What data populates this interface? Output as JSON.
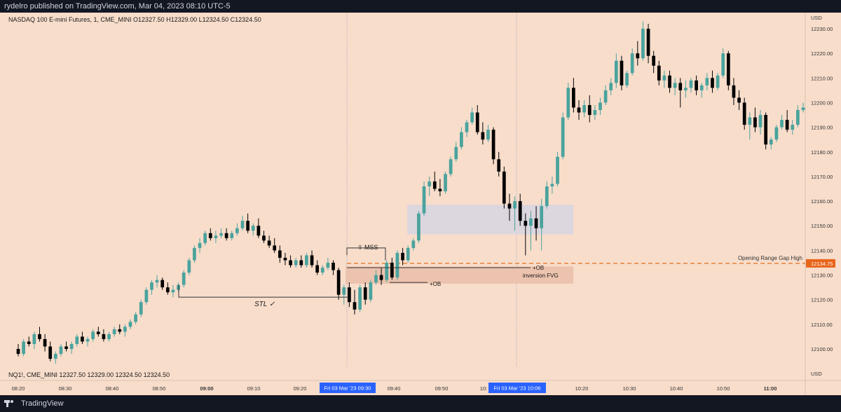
{
  "publish_line": "rydelro published on TradingView.com, Mar 04, 2023 08:10 UTC-5",
  "footer": {
    "brand": "TradingView"
  },
  "legend": {
    "top": "NASDAQ 100 E-mini Futures, 1, CME_MINI  O12327.50  H12329.00  L12324.50  C12324.50",
    "bottom": "NQ1!, CME_MINI  12327.50  12329.00  12324.50  12324.50"
  },
  "price_axis": {
    "currency": "USD",
    "currency_bottom": "USD",
    "ticks": [
      "12230.00",
      "12220.00",
      "12210.00",
      "12200.00",
      "12190.00",
      "12180.00",
      "12170.00",
      "12160.00",
      "12150.00",
      "12140.00",
      "12130.00",
      "12120.00",
      "12110.00",
      "12100.00"
    ],
    "current_price_label": "12134.75"
  },
  "time_axis": {
    "ticks": [
      "08:20",
      "08:30",
      "08:40",
      "08:50",
      "09:00",
      "09:10",
      "09:20",
      "09:40",
      "09:50",
      "10:",
      "10:20",
      "10:30",
      "10:40",
      "10:50",
      "11:00"
    ],
    "highlight_1": "Fri 03 Mar '23   09:30",
    "highlight_2": "Fri 03 Mar '23   10:06"
  },
  "annotations": {
    "mss": "⇧ MSS",
    "stl": "STL ✓",
    "ob_low": "+OB",
    "ob_high": "+OB",
    "inversion_fvg": "inversion FVG",
    "opening_range": "Opening Range Gap High"
  },
  "colors": {
    "background": "#f8ddcb",
    "bull": "#4aa39d",
    "bear": "#000000",
    "level_line": "#e36f1a",
    "price_label_bg": "#e8651c",
    "highlight_label_bg": "#2962ff"
  },
  "chart_data": {
    "type": "candlestick",
    "unit": "USD",
    "levels": {
      "opening_range_gap_high": 12134.75
    },
    "zones": [
      {
        "label": "",
        "from_time": "09:42",
        "to_time": "10:17",
        "low": 12146.5,
        "high": 12158.5
      },
      {
        "label": "inversion FVG",
        "from_time": "09:29",
        "to_time": "10:17",
        "low": 12126.5,
        "high": 12133.5
      }
    ],
    "candles": [
      [
        12100,
        12102,
        12097,
        12098
      ],
      [
        12098,
        12104,
        12097,
        12103
      ],
      [
        12103,
        12105,
        12101,
        12102
      ],
      [
        12102,
        12107,
        12100,
        12106
      ],
      [
        12106,
        12109,
        12103,
        12104
      ],
      [
        12104,
        12106,
        12099,
        12101
      ],
      [
        12101,
        12103,
        12095,
        12096
      ],
      [
        12096,
        12099,
        12094,
        12098
      ],
      [
        12098,
        12102,
        12097,
        12101
      ],
      [
        12101,
        12103,
        12099,
        12100
      ],
      [
        12100,
        12103,
        12098,
        12102
      ],
      [
        12102,
        12106,
        12101,
        12105
      ],
      [
        12105,
        12107,
        12102,
        12103
      ],
      [
        12103,
        12105,
        12101,
        12104
      ],
      [
        12104,
        12108,
        12103,
        12107
      ],
      [
        12107,
        12109,
        12105,
        12106
      ],
      [
        12106,
        12108,
        12103,
        12104
      ],
      [
        12104,
        12107,
        12103,
        12106
      ],
      [
        12106,
        12109,
        12105,
        12108
      ],
      [
        12108,
        12110,
        12106,
        12107
      ],
      [
        12107,
        12110,
        12105,
        12109
      ],
      [
        12109,
        12112,
        12108,
        12111
      ],
      [
        12111,
        12115,
        12110,
        12114
      ],
      [
        12114,
        12120,
        12113,
        12119
      ],
      [
        12119,
        12125,
        12118,
        12124
      ],
      [
        12124,
        12128,
        12122,
        12127
      ],
      [
        12127,
        12130,
        12125,
        12128
      ],
      [
        12128,
        12129,
        12124,
        12125
      ],
      [
        12125,
        12127,
        12122,
        12123
      ],
      [
        12123,
        12126,
        12121,
        12124
      ],
      [
        12124,
        12127,
        12123,
        12126
      ],
      [
        12126,
        12132,
        12125,
        12131
      ],
      [
        12131,
        12137,
        12130,
        12136
      ],
      [
        12136,
        12142,
        12135,
        12141
      ],
      [
        12141,
        12145,
        12139,
        12143
      ],
      [
        12143,
        12148,
        12142,
        12147
      ],
      [
        12147,
        12149,
        12144,
        12145
      ],
      [
        12145,
        12148,
        12143,
        12146
      ],
      [
        12146,
        12149,
        12145,
        12147
      ],
      [
        12147,
        12149,
        12144,
        12145
      ],
      [
        12145,
        12148,
        12144,
        12147
      ],
      [
        12147,
        12151,
        12146,
        12149
      ],
      [
        12149,
        12154,
        12148,
        12152
      ],
      [
        12152,
        12155,
        12147,
        12148
      ],
      [
        12148,
        12151,
        12146,
        12150
      ],
      [
        12150,
        12153,
        12145,
        12146
      ],
      [
        12146,
        12148,
        12143,
        12144
      ],
      [
        12144,
        12146,
        12141,
        12142
      ],
      [
        12142,
        12145,
        12139,
        12140
      ],
      [
        12140,
        12142,
        12135,
        12137
      ],
      [
        12137,
        12139,
        12134,
        12136
      ],
      [
        12136,
        12138,
        12133,
        12134
      ],
      [
        12134,
        12137,
        12133,
        12136
      ],
      [
        12136,
        12138,
        12133,
        12134
      ],
      [
        12134,
        12139,
        12133,
        12138
      ],
      [
        12138,
        12140,
        12133,
        12134
      ],
      [
        12134,
        12136,
        12130,
        12131
      ],
      [
        12131,
        12134,
        12130,
        12133
      ],
      [
        12133,
        12137,
        12132,
        12135
      ],
      [
        12135,
        12136,
        12130,
        12132
      ],
      [
        12132,
        12133,
        12120,
        12122
      ],
      [
        12122,
        12126,
        12118,
        12125
      ],
      [
        12125,
        12127,
        12117,
        12119
      ],
      [
        12119,
        12124,
        12114,
        12116
      ],
      [
        12116,
        12126,
        12115,
        12125
      ],
      [
        12125,
        12127,
        12118,
        12120
      ],
      [
        12120,
        12128,
        12119,
        12127
      ],
      [
        12127,
        12132,
        12126,
        12130
      ],
      [
        12130,
        12133,
        12126,
        12128
      ],
      [
        12128,
        12136,
        12127,
        12135
      ],
      [
        12135,
        12137,
        12128,
        12129
      ],
      [
        12129,
        12140,
        12128,
        12139
      ],
      [
        12139,
        12141,
        12134,
        12136
      ],
      [
        12136,
        12142,
        12135,
        12141
      ],
      [
        12141,
        12145,
        12140,
        12144
      ],
      [
        12144,
        12156,
        12143,
        12155
      ],
      [
        12155,
        12168,
        12154,
        12166
      ],
      [
        12166,
        12170,
        12162,
        12168
      ],
      [
        12168,
        12172,
        12164,
        12165
      ],
      [
        12165,
        12169,
        12162,
        12164
      ],
      [
        12164,
        12172,
        12163,
        12171
      ],
      [
        12171,
        12178,
        12170,
        12177
      ],
      [
        12177,
        12184,
        12176,
        12182
      ],
      [
        12182,
        12190,
        12181,
        12188
      ],
      [
        12188,
        12193,
        12186,
        12192
      ],
      [
        12192,
        12198,
        12191,
        12196
      ],
      [
        12196,
        12199,
        12187,
        12188
      ],
      [
        12188,
        12192,
        12183,
        12185
      ],
      [
        12185,
        12191,
        12184,
        12189
      ],
      [
        12189,
        12190,
        12175,
        12177
      ],
      [
        12177,
        12180,
        12170,
        12172
      ],
      [
        12172,
        12174,
        12157,
        12159
      ],
      [
        12159,
        12163,
        12152,
        12157
      ],
      [
        12157,
        12162,
        12148,
        12160
      ],
      [
        12160,
        12163,
        12150,
        12152
      ],
      [
        12152,
        12155,
        12138,
        12150
      ],
      [
        12150,
        12156,
        12140,
        12153
      ],
      [
        12153,
        12158,
        12144,
        12149
      ],
      [
        12149,
        12161,
        12140,
        12158
      ],
      [
        12158,
        12168,
        12157,
        12166
      ],
      [
        12166,
        12170,
        12163,
        12167
      ],
      [
        12167,
        12180,
        12166,
        12178
      ],
      [
        12178,
        12196,
        12177,
        12194
      ],
      [
        12194,
        12208,
        12193,
        12206
      ],
      [
        12206,
        12210,
        12196,
        12198
      ],
      [
        12198,
        12201,
        12193,
        12196
      ],
      [
        12196,
        12201,
        12194,
        12199
      ],
      [
        12199,
        12203,
        12192,
        12195
      ],
      [
        12195,
        12199,
        12193,
        12197
      ],
      [
        12197,
        12202,
        12195,
        12200
      ],
      [
        12200,
        12207,
        12199,
        12205
      ],
      [
        12205,
        12210,
        12203,
        12208
      ],
      [
        12208,
        12220,
        12206,
        12217
      ],
      [
        12217,
        12219,
        12205,
        12207
      ],
      [
        12207,
        12213,
        12206,
        12212
      ],
      [
        12212,
        12222,
        12211,
        12220
      ],
      [
        12220,
        12225,
        12215,
        12218
      ],
      [
        12218,
        12233,
        12217,
        12230
      ],
      [
        12230,
        12232,
        12216,
        12219
      ],
      [
        12219,
        12221,
        12212,
        12215
      ],
      [
        12215,
        12217,
        12207,
        12209
      ],
      [
        12209,
        12213,
        12206,
        12211
      ],
      [
        12211,
        12213,
        12204,
        12206
      ],
      [
        12206,
        12210,
        12203,
        12208
      ],
      [
        12208,
        12210,
        12198,
        12205
      ],
      [
        12205,
        12209,
        12202,
        12206
      ],
      [
        12206,
        12210,
        12204,
        12209
      ],
      [
        12209,
        12211,
        12203,
        12205
      ],
      [
        12205,
        12208,
        12202,
        12207
      ],
      [
        12207,
        12212,
        12205,
        12210
      ],
      [
        12210,
        12213,
        12204,
        12206
      ],
      [
        12206,
        12212,
        12205,
        12211
      ],
      [
        12211,
        12222,
        12210,
        12220
      ],
      [
        12220,
        12221,
        12205,
        12207
      ],
      [
        12207,
        12210,
        12199,
        12202
      ],
      [
        12202,
        12205,
        12197,
        12200
      ],
      [
        12200,
        12202,
        12189,
        12191
      ],
      [
        12191,
        12196,
        12185,
        12194
      ],
      [
        12194,
        12198,
        12188,
        12190
      ],
      [
        12190,
        12197,
        12187,
        12195
      ],
      [
        12195,
        12196,
        12181,
        12183
      ],
      [
        12183,
        12186,
        12181,
        12185
      ],
      [
        12185,
        12191,
        12184,
        12190
      ],
      [
        12190,
        12195,
        12189,
        12193
      ],
      [
        12193,
        12197,
        12188,
        12189
      ],
      [
        12189,
        12193,
        12187,
        12191
      ],
      [
        12191,
        12199,
        12190,
        12197
      ],
      [
        12197,
        12200,
        12196,
        12198
      ]
    ]
  }
}
